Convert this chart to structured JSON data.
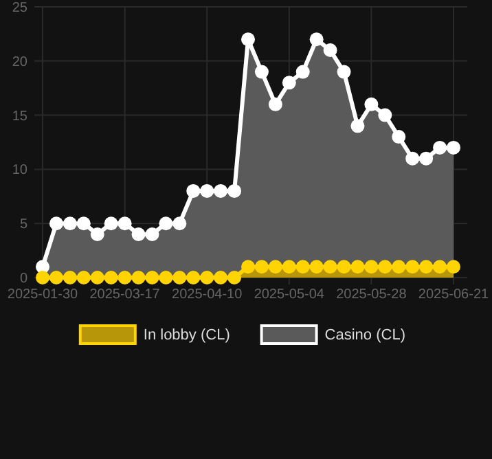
{
  "chart_data": {
    "type": "area",
    "categories": [
      "2025-01-30",
      null,
      null,
      null,
      null,
      null,
      "2025-03-17",
      null,
      null,
      null,
      null,
      null,
      "2025-04-10",
      null,
      null,
      null,
      null,
      null,
      "2025-05-04",
      null,
      null,
      null,
      null,
      null,
      "2025-05-28",
      null,
      null,
      null,
      null,
      null,
      "2025-06-21"
    ],
    "series": [
      {
        "name": "In lobby (CL)",
        "color": "#ffd400",
        "values": [
          0,
          0,
          0,
          0,
          0,
          0,
          0,
          0,
          0,
          0,
          0,
          0,
          0,
          0,
          0,
          1,
          1,
          1,
          1,
          1,
          1,
          1,
          1,
          1,
          1,
          1,
          1,
          1,
          1,
          1,
          1
        ]
      },
      {
        "name": "Casino (CL)",
        "color": "#ffffff",
        "values": [
          1,
          5,
          5,
          5,
          4,
          5,
          5,
          4,
          4,
          5,
          5,
          8,
          8,
          8,
          8,
          22,
          19,
          16,
          18,
          19,
          22,
          21,
          19,
          14,
          16,
          15,
          13,
          11,
          11,
          12,
          12
        ]
      }
    ],
    "ylim": [
      0,
      25
    ],
    "yticks": [
      0,
      5,
      10,
      15,
      20,
      25
    ],
    "grid": true,
    "legend": "bottom",
    "marker": "circle",
    "line_style": "solid"
  }
}
